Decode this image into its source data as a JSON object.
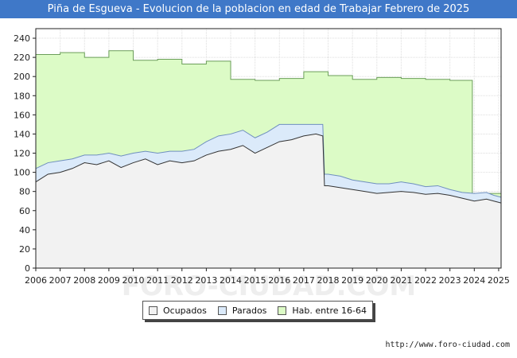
{
  "title": "Piña de Esgueva - Evolucion de la poblacion en edad de Trabajar Febrero de 2025",
  "source": "http://www.foro-ciudad.com",
  "watermark": "FORO-CIUDAD.COM",
  "colors": {
    "title_bg": "#3f78c8",
    "ocupados_fill": "#f2f2f2",
    "parados_fill": "#dbeafa",
    "hab_fill": "#dcfbc6",
    "hab_line": "#6b9e5a",
    "parados_line": "#6f8fbf",
    "ocupados_line": "#333333",
    "grid": "#dddddd"
  },
  "chart_data": {
    "type": "area",
    "title": "Piña de Esgueva - Evolucion de la poblacion en edad de Trabajar Febrero de 2025",
    "xlabel": "",
    "ylabel": "",
    "xlim": [
      2006,
      2025.1
    ],
    "ylim": [
      0,
      250
    ],
    "yticks": [
      0,
      20,
      40,
      60,
      80,
      100,
      120,
      140,
      160,
      180,
      200,
      220,
      240
    ],
    "xticks": [
      2006,
      2007,
      2008,
      2009,
      2010,
      2011,
      2012,
      2013,
      2014,
      2015,
      2016,
      2017,
      2018,
      2019,
      2020,
      2021,
      2022,
      2023,
      2024,
      2025
    ],
    "grid": true,
    "legend_position": "bottom-center",
    "hab_steps": [
      {
        "from": 2006,
        "to": 2007,
        "value": 223
      },
      {
        "from": 2007,
        "to": 2008,
        "value": 225
      },
      {
        "from": 2008,
        "to": 2009,
        "value": 220
      },
      {
        "from": 2009,
        "to": 2010,
        "value": 227
      },
      {
        "from": 2010,
        "to": 2011,
        "value": 217
      },
      {
        "from": 2011,
        "to": 2012,
        "value": 218
      },
      {
        "from": 2012,
        "to": 2013,
        "value": 213
      },
      {
        "from": 2013,
        "to": 2014,
        "value": 216
      },
      {
        "from": 2014,
        "to": 2015,
        "value": 197
      },
      {
        "from": 2015,
        "to": 2016,
        "value": 196
      },
      {
        "from": 2016,
        "to": 2017,
        "value": 198
      },
      {
        "from": 2017,
        "to": 2018,
        "value": 205
      },
      {
        "from": 2018,
        "to": 2019,
        "value": 201
      },
      {
        "from": 2019,
        "to": 2020,
        "value": 197
      },
      {
        "from": 2020,
        "to": 2021,
        "value": 199
      },
      {
        "from": 2021,
        "to": 2022,
        "value": 198
      },
      {
        "from": 2022,
        "to": 2023,
        "value": 197
      },
      {
        "from": 2023,
        "to": 2023.92,
        "value": 196
      },
      {
        "from": 2023.92,
        "to": 2025.1,
        "value": 78
      }
    ],
    "series": [
      {
        "name": "Ocupados",
        "x": [
          2006.0,
          2006.5,
          2007.0,
          2007.5,
          2008.0,
          2008.5,
          2009.0,
          2009.5,
          2010.0,
          2010.5,
          2011.0,
          2011.5,
          2012.0,
          2012.5,
          2013.0,
          2013.5,
          2014.0,
          2014.5,
          2015.0,
          2015.5,
          2016.0,
          2016.5,
          2017.0,
          2017.5,
          2017.78,
          2017.85,
          2018.0,
          2018.5,
          2019.0,
          2019.5,
          2020.0,
          2020.5,
          2021.0,
          2021.5,
          2022.0,
          2022.5,
          2023.0,
          2023.5,
          2024.0,
          2024.5,
          2024.8,
          2025.1
        ],
        "values": [
          90,
          98,
          100,
          104,
          110,
          108,
          112,
          105,
          110,
          114,
          108,
          112,
          110,
          112,
          118,
          122,
          124,
          128,
          120,
          126,
          132,
          134,
          138,
          140,
          138,
          86,
          86,
          84,
          82,
          80,
          78,
          79,
          80,
          79,
          77,
          78,
          76,
          73,
          70,
          72,
          70,
          68
        ]
      },
      {
        "name": "Parados",
        "x": [
          2006.0,
          2006.5,
          2007.0,
          2007.5,
          2008.0,
          2008.5,
          2009.0,
          2009.5,
          2010.0,
          2010.5,
          2011.0,
          2011.5,
          2012.0,
          2012.5,
          2013.0,
          2013.5,
          2014.0,
          2014.5,
          2015.0,
          2015.5,
          2016.0,
          2016.5,
          2017.0,
          2017.5,
          2017.78,
          2017.85,
          2018.0,
          2018.5,
          2019.0,
          2019.5,
          2020.0,
          2020.5,
          2021.0,
          2021.5,
          2022.0,
          2022.5,
          2023.0,
          2023.5,
          2024.0,
          2024.5,
          2024.8,
          2025.1
        ],
        "values": [
          14,
          12,
          12,
          10,
          8,
          10,
          8,
          12,
          10,
          8,
          12,
          10,
          12,
          12,
          14,
          16,
          16,
          16,
          16,
          16,
          18,
          16,
          12,
          10,
          12,
          12,
          12,
          12,
          10,
          10,
          10,
          9,
          10,
          9,
          8,
          8,
          6,
          6,
          8,
          7,
          6,
          6
        ]
      }
    ]
  },
  "legend": [
    {
      "label": "Ocupados",
      "color": "#f2f2f2"
    },
    {
      "label": "Parados",
      "color": "#dbeafa"
    },
    {
      "label": "Hab. entre 16-64",
      "color": "#dcfbc6"
    }
  ]
}
